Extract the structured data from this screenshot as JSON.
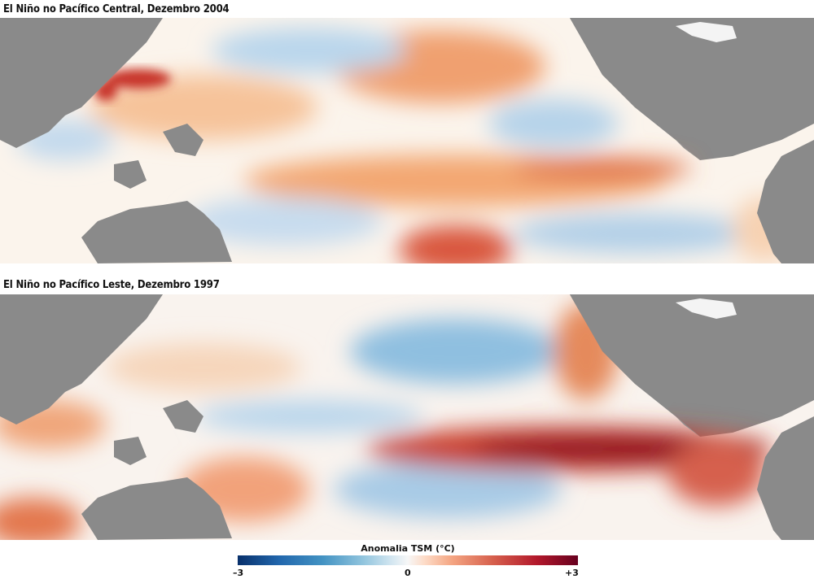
{
  "panels": [
    {
      "title": "El Niño no Pacífico Central, Dezembro 2004"
    },
    {
      "title": "El Niño no Pacífico Leste, Dezembro 1997"
    }
  ],
  "legend": {
    "title": "Anomalia TSM (°C)",
    "min_label": "–3",
    "mid_label": "0",
    "max_label": "+3",
    "range": [
      -3,
      3
    ],
    "colors": [
      "#08306b",
      "#2166ac",
      "#92c5de",
      "#f7f7f7",
      "#f4a582",
      "#b2182b",
      "#67001f"
    ]
  },
  "land_color": "#8a8a8a"
}
